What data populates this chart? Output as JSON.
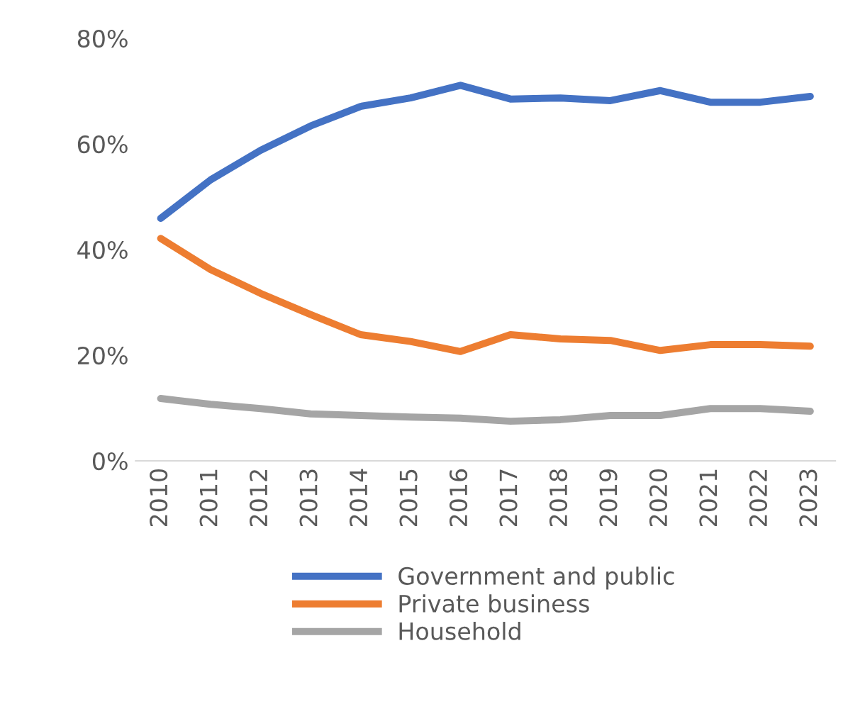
{
  "chart_data": {
    "type": "line",
    "categories": [
      "2010",
      "2011",
      "2012",
      "2013",
      "2014",
      "2015",
      "2016",
      "2017",
      "2018",
      "2019",
      "2020",
      "2021",
      "2022",
      "2023"
    ],
    "series": [
      {
        "name": "Government and public",
        "color": "#4472c4",
        "values": [
          45.9,
          53.2,
          58.8,
          63.4,
          67.1,
          68.7,
          71.1,
          68.5,
          68.7,
          68.2,
          70.1,
          67.9,
          67.9,
          69.0
        ]
      },
      {
        "name": "Private business",
        "color": "#ed7d31",
        "values": [
          42.1,
          36.2,
          31.7,
          27.7,
          23.9,
          22.6,
          20.7,
          23.9,
          23.1,
          22.8,
          20.9,
          22.0,
          22.0,
          21.7
        ]
      },
      {
        "name": "Household",
        "color": "#a5a5a5",
        "values": [
          11.8,
          10.7,
          9.9,
          8.9,
          8.6,
          8.3,
          8.1,
          7.5,
          7.8,
          8.6,
          8.6,
          9.9,
          9.9,
          9.4
        ]
      }
    ],
    "ylim": [
      0,
      80
    ],
    "yticks": [
      {
        "value": 0,
        "label": "0%"
      },
      {
        "value": 20,
        "label": "20%"
      },
      {
        "value": 40,
        "label": "40%"
      },
      {
        "value": 60,
        "label": "60%"
      },
      {
        "value": 80,
        "label": "80%"
      }
    ],
    "grid": false,
    "legend": "bottom",
    "marker": "none",
    "line_style": "solid"
  }
}
